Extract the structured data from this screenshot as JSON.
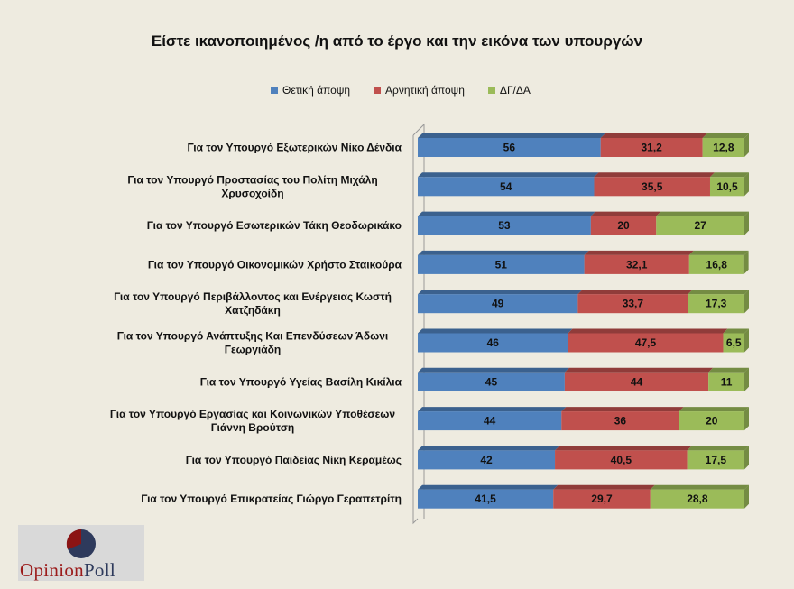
{
  "chart_data": {
    "type": "bar",
    "orientation": "horizontal",
    "stacked": true,
    "title": "Είστε ικανοποιημένος /η από το έργο και την εικόνα των υπουργών",
    "legend_position": "top",
    "grid": false,
    "xlim": [
      0,
      100
    ],
    "categories": [
      "Για τον Υπουργό Εξωτερικών Νίκο Δένδια",
      "Για τον Υπουργό Προστασίας του Πολίτη Μιχάλη Χρυσοχοίδη",
      "Για τον Υπουργό Εσωτερικών Τάκη Θεοδωρικάκο",
      "Για τον Υπουργό Οικονομικών Χρήστο Σταικούρα",
      "Για τον Υπουργό  Περιβάλλοντος και Ενέργειας Κωστή Χατζηδάκη",
      "Για τον Υπουργό Ανάπτυξης Και Επενδύσεων Άδωνι Γεωργιάδη",
      "Για τον Υπουργό Υγείας Βασίλη Κικίλια",
      "Για τον Υπουργό Εργασίας και Κοινωνικών Υποθέσεων Γιάννη Βρούτση",
      "Για τον Υπουργό Παιδείας Νίκη Κεραμέως",
      "Για τον Υπουργό Επικρατείας Γιώργο Γεραπετρίτη"
    ],
    "series": [
      {
        "name": "Θετική άποψη",
        "color": "#4F81BD",
        "values": [
          56,
          54,
          53,
          51,
          49,
          46,
          45,
          44,
          42,
          41.5
        ],
        "labels": [
          "56",
          "54",
          "53",
          "51",
          "49",
          "46",
          "45",
          "44",
          "42",
          "41,5"
        ]
      },
      {
        "name": "Αρνητική άποψη",
        "color": "#C0504D",
        "values": [
          31.2,
          35.5,
          20,
          32.1,
          33.7,
          47.5,
          44,
          36,
          40.5,
          29.7
        ],
        "labels": [
          "31,2",
          "35,5",
          "20",
          "32,1",
          "33,7",
          "47,5",
          "44",
          "36",
          "40,5",
          "29,7"
        ]
      },
      {
        "name": "ΔΓ/ΔΑ",
        "color": "#9BBB59",
        "values": [
          12.8,
          10.5,
          27,
          16.8,
          17.3,
          6.5,
          11,
          20,
          17.5,
          28.8
        ],
        "labels": [
          "12,8",
          "10,5",
          "27",
          "16,8",
          "17,3",
          "6,5",
          "11",
          "20",
          "17,5",
          "28,8"
        ]
      }
    ]
  },
  "logo": {
    "text_a": "Opinion",
    "text_b": "Poll"
  }
}
